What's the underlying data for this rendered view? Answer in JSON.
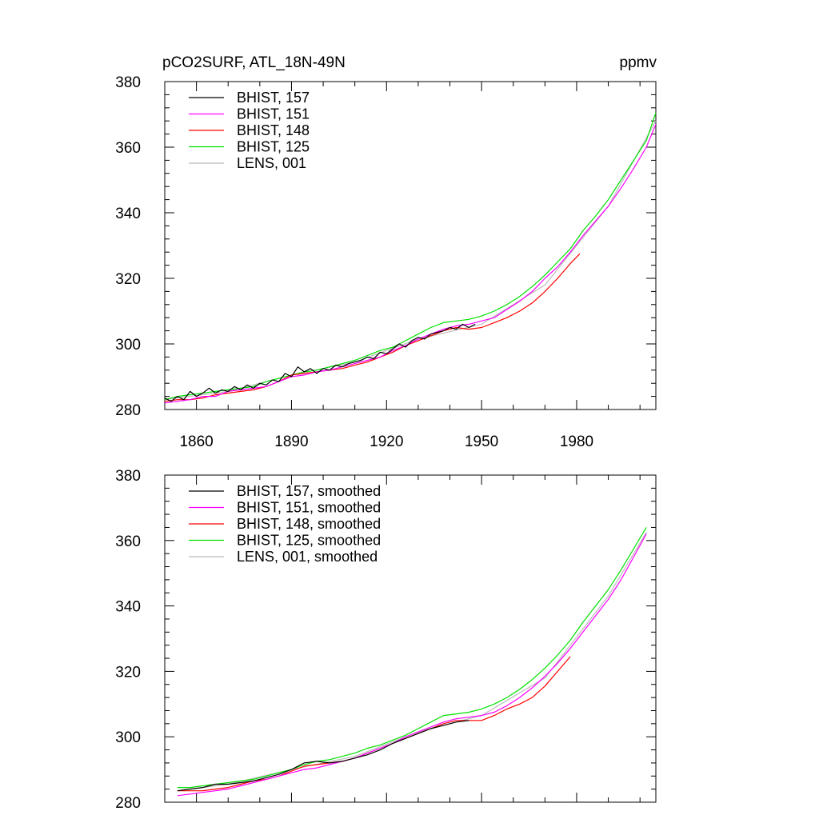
{
  "chart_data": [
    {
      "type": "line",
      "title": "pCO2SURF, ATL_18N-49N",
      "units": "ppmv",
      "xlim": [
        1850,
        2005
      ],
      "ylim": [
        280,
        380
      ],
      "xticks": [
        1860,
        1890,
        1920,
        1950,
        1980
      ],
      "yticks": [
        280,
        300,
        320,
        340,
        360,
        380
      ],
      "xtick_labels": [
        "1860",
        "1890",
        "1920",
        "1950",
        "1980"
      ],
      "ytick_labels": [
        "280",
        "300",
        "320",
        "340",
        "360",
        "380"
      ],
      "legend_position": "top-left",
      "series": [
        {
          "name": "BHIST, 157",
          "color": "#000000",
          "x": [
            1850,
            1852,
            1854,
            1856,
            1858,
            1860,
            1862,
            1864,
            1866,
            1868,
            1870,
            1872,
            1874,
            1876,
            1878,
            1880,
            1882,
            1884,
            1886,
            1888,
            1890,
            1892,
            1894,
            1896,
            1898,
            1900,
            1902,
            1904,
            1906,
            1908,
            1910,
            1912,
            1914,
            1916,
            1918,
            1920,
            1922,
            1924,
            1926,
            1928,
            1930,
            1932,
            1934,
            1936,
            1938,
            1940,
            1942,
            1944,
            1946,
            1948
          ],
          "y": [
            283.5,
            282.5,
            284.0,
            283.0,
            285.5,
            284.0,
            285.0,
            286.5,
            285.0,
            286.0,
            285.5,
            287.0,
            286.0,
            287.5,
            286.5,
            288.0,
            287.5,
            289.0,
            288.5,
            291.0,
            290.0,
            293.0,
            291.5,
            292.5,
            291.0,
            292.5,
            292.0,
            293.5,
            293.0,
            294.0,
            294.5,
            295.0,
            296.0,
            295.5,
            297.5,
            297.0,
            298.5,
            300.0,
            299.0,
            301.0,
            302.0,
            301.5,
            303.0,
            303.5,
            304.0,
            305.0,
            304.5,
            306.0,
            305.0,
            306.0
          ]
        },
        {
          "name": "BHIST, 151",
          "color": "#ff00ff",
          "x": [
            1850,
            1854,
            1858,
            1862,
            1866,
            1870,
            1874,
            1878,
            1882,
            1886,
            1890,
            1894,
            1898,
            1902,
            1906,
            1910,
            1914,
            1918,
            1922,
            1926,
            1930,
            1934,
            1938,
            1942,
            1946,
            1950,
            1954,
            1958,
            1962,
            1966,
            1970,
            1974,
            1978,
            1982,
            1986,
            1990,
            1994,
            1998,
            2002,
            2005
          ],
          "y": [
            282.0,
            282.5,
            283.0,
            284.0,
            284.0,
            285.5,
            286.0,
            286.5,
            287.0,
            288.5,
            290.0,
            290.5,
            291.5,
            292.0,
            293.0,
            294.0,
            295.0,
            296.0,
            298.0,
            299.5,
            301.5,
            303.0,
            304.5,
            305.5,
            306.0,
            307.0,
            308.0,
            310.5,
            313.0,
            316.0,
            320.0,
            323.5,
            328.0,
            333.0,
            337.5,
            342.0,
            347.5,
            353.5,
            360.0,
            367.0
          ]
        },
        {
          "name": "BHIST, 148",
          "color": "#ff0000",
          "x": [
            1850,
            1854,
            1858,
            1862,
            1866,
            1870,
            1874,
            1878,
            1882,
            1886,
            1890,
            1894,
            1898,
            1902,
            1906,
            1910,
            1914,
            1918,
            1922,
            1926,
            1930,
            1934,
            1938,
            1942,
            1946,
            1950,
            1954,
            1958,
            1962,
            1966,
            1970,
            1974,
            1978,
            1981
          ],
          "y": [
            282.5,
            283.0,
            283.0,
            283.5,
            284.5,
            285.0,
            285.5,
            286.0,
            287.0,
            288.5,
            290.5,
            291.0,
            291.5,
            292.0,
            292.5,
            293.5,
            294.5,
            296.0,
            297.5,
            299.5,
            301.0,
            302.5,
            304.0,
            305.0,
            304.5,
            305.0,
            306.5,
            308.0,
            310.0,
            312.5,
            316.0,
            320.0,
            324.5,
            327.5
          ]
        },
        {
          "name": "BHIST, 125",
          "color": "#00e000",
          "x": [
            1850,
            1854,
            1858,
            1862,
            1866,
            1870,
            1874,
            1878,
            1882,
            1886,
            1890,
            1894,
            1898,
            1902,
            1906,
            1910,
            1914,
            1918,
            1922,
            1926,
            1930,
            1934,
            1938,
            1942,
            1946,
            1950,
            1954,
            1958,
            1962,
            1966,
            1970,
            1974,
            1978,
            1982,
            1986,
            1990,
            1994,
            1998,
            2002,
            2005
          ],
          "y": [
            283.0,
            284.0,
            284.5,
            285.0,
            285.5,
            286.0,
            286.5,
            287.0,
            288.5,
            289.5,
            290.5,
            291.5,
            292.0,
            293.0,
            294.0,
            295.0,
            296.5,
            298.0,
            299.0,
            301.0,
            303.0,
            305.0,
            306.5,
            307.0,
            307.5,
            308.5,
            310.0,
            312.0,
            314.5,
            317.5,
            321.0,
            325.0,
            329.0,
            334.5,
            339.0,
            344.0,
            350.0,
            356.0,
            362.0,
            370.5
          ]
        },
        {
          "name": "LENS, 001",
          "color": "#bbbbbb",
          "x": [
            1850,
            1870,
            1890,
            1910,
            1930,
            1950,
            1970,
            1990,
            2005
          ],
          "y": [
            283.0,
            285.5,
            290.5,
            294.5,
            301.5,
            306.0,
            318.0,
            342.0,
            368.0
          ]
        }
      ]
    },
    {
      "type": "line",
      "xlim": [
        1850,
        2005
      ],
      "ylim": [
        280,
        380
      ],
      "xticks": [
        1860,
        1890,
        1920,
        1950,
        1980
      ],
      "yticks": [
        280,
        300,
        320,
        340,
        360,
        380
      ],
      "ytick_labels": [
        "280",
        "300",
        "320",
        "340",
        "360",
        "380"
      ],
      "legend_position": "top-left",
      "series": [
        {
          "name": "BHIST, 157, smoothed",
          "color": "#000000",
          "x": [
            1854,
            1858,
            1862,
            1866,
            1870,
            1874,
            1878,
            1882,
            1886,
            1890,
            1894,
            1898,
            1902,
            1906,
            1910,
            1914,
            1918,
            1922,
            1926,
            1930,
            1934,
            1938,
            1942,
            1946
          ],
          "y": [
            283.5,
            284.0,
            284.5,
            285.5,
            285.5,
            286.0,
            286.5,
            287.5,
            288.5,
            290.0,
            292.0,
            292.5,
            292.0,
            292.5,
            293.5,
            294.5,
            296.0,
            298.0,
            299.5,
            301.0,
            302.5,
            303.5,
            304.5,
            305.0
          ]
        },
        {
          "name": "BHIST, 151, smoothed",
          "color": "#ff00ff",
          "x": [
            1854,
            1858,
            1862,
            1866,
            1870,
            1874,
            1878,
            1882,
            1886,
            1890,
            1894,
            1898,
            1902,
            1906,
            1910,
            1914,
            1918,
            1922,
            1926,
            1930,
            1934,
            1938,
            1942,
            1946,
            1950,
            1954,
            1958,
            1962,
            1966,
            1970,
            1974,
            1978,
            1982,
            1986,
            1990,
            1994,
            1998,
            2002
          ],
          "y": [
            282.0,
            282.5,
            283.0,
            283.5,
            284.0,
            285.0,
            286.0,
            287.0,
            288.0,
            289.0,
            290.0,
            290.5,
            291.5,
            292.5,
            293.5,
            295.0,
            296.5,
            298.0,
            300.0,
            301.5,
            303.0,
            304.5,
            305.5,
            306.0,
            306.5,
            307.5,
            309.5,
            312.0,
            315.0,
            318.5,
            322.5,
            327.0,
            332.0,
            337.0,
            342.0,
            348.0,
            355.0,
            362.0
          ]
        },
        {
          "name": "BHIST, 148, smoothed",
          "color": "#ff0000",
          "x": [
            1854,
            1858,
            1862,
            1866,
            1870,
            1874,
            1878,
            1882,
            1886,
            1890,
            1894,
            1898,
            1902,
            1906,
            1910,
            1914,
            1918,
            1922,
            1926,
            1930,
            1934,
            1938,
            1942,
            1946,
            1950,
            1954,
            1958,
            1962,
            1966,
            1970,
            1974,
            1978
          ],
          "y": [
            283.5,
            283.5,
            283.5,
            284.0,
            284.5,
            285.5,
            286.5,
            287.0,
            288.0,
            289.5,
            291.0,
            291.5,
            292.0,
            292.5,
            293.5,
            295.0,
            296.5,
            298.0,
            299.5,
            301.0,
            302.5,
            304.0,
            305.0,
            305.0,
            305.0,
            306.5,
            308.5,
            310.0,
            312.0,
            315.5,
            320.0,
            324.5
          ]
        },
        {
          "name": "BHIST, 125, smoothed",
          "color": "#00e000",
          "x": [
            1854,
            1858,
            1862,
            1866,
            1870,
            1874,
            1878,
            1882,
            1886,
            1890,
            1894,
            1898,
            1902,
            1906,
            1910,
            1914,
            1918,
            1922,
            1926,
            1930,
            1934,
            1938,
            1942,
            1946,
            1950,
            1954,
            1958,
            1962,
            1966,
            1970,
            1974,
            1978,
            1982,
            1986,
            1990,
            1994,
            1998,
            2002
          ],
          "y": [
            284.5,
            284.5,
            285.0,
            285.5,
            286.0,
            286.5,
            287.0,
            288.0,
            289.0,
            290.0,
            291.5,
            292.5,
            293.0,
            294.0,
            295.0,
            296.5,
            297.5,
            299.0,
            300.5,
            302.5,
            304.5,
            306.5,
            307.0,
            307.5,
            308.5,
            310.0,
            312.0,
            314.5,
            317.5,
            321.0,
            325.0,
            329.5,
            335.0,
            340.0,
            345.0,
            351.0,
            357.5,
            364.0
          ]
        },
        {
          "name": "LENS, 001, smoothed",
          "color": "#bbbbbb",
          "x": [
            1854,
            1870,
            1890,
            1910,
            1930,
            1950,
            1970,
            1990,
            2002
          ],
          "y": [
            283.5,
            285.5,
            290.0,
            294.0,
            301.5,
            306.5,
            318.0,
            343.0,
            362.5
          ]
        }
      ]
    }
  ]
}
